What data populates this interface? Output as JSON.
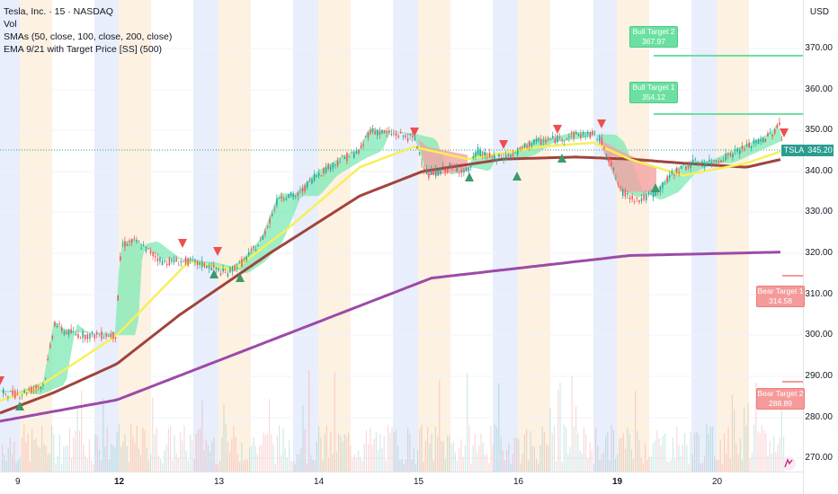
{
  "legend": {
    "symbol": "Tesla, Inc. · 15 · NASDAQ",
    "vol": "Vol",
    "smas": "SMAs (50, close, 100, close, 200, close)",
    "ema": "EMA 9/21 with Target Price [SS] (500)"
  },
  "currency": "USD",
  "y_axis_labels": [
    "370.00",
    "360.00",
    "350.00",
    "340.00",
    "330.00",
    "320.00",
    "310.00",
    "300.00",
    "290.00",
    "280.00",
    "270.00"
  ],
  "x_axis_labels": [
    {
      "text": "9",
      "bold": false
    },
    {
      "text": "12",
      "bold": true
    },
    {
      "text": "13",
      "bold": false
    },
    {
      "text": "14",
      "bold": false
    },
    {
      "text": "15",
      "bold": false
    },
    {
      "text": "16",
      "bold": false
    },
    {
      "text": "19",
      "bold": true
    },
    {
      "text": "20",
      "bold": false
    }
  ],
  "targets": {
    "bull2": {
      "label": "Bull Target 2",
      "value": "367.97"
    },
    "bull1": {
      "label": "Bull Target 1",
      "value": "354.12"
    },
    "bear1": {
      "label": "Bear Target 1",
      "value": "314.58"
    },
    "bear2": {
      "label": "Bear Target 2",
      "value": "288.89"
    }
  },
  "ticker_tag": "TSLA",
  "last_price": "345.20",
  "colors": {
    "bull": "#26a69a",
    "bear": "#ef5350",
    "sma50": "#f7ef5a",
    "sma100": "#a0443c",
    "sma200": "#9c4aa8",
    "cloud_bull": "#7ee8b4",
    "cloud_bear": "#f3a3a3",
    "session_blue": "#e8eefb",
    "session_orange": "#fdf1e2"
  },
  "icons": [
    "tradingview-logo-icon",
    "buy-arrow-icon",
    "sell-arrow-icon"
  ]
}
